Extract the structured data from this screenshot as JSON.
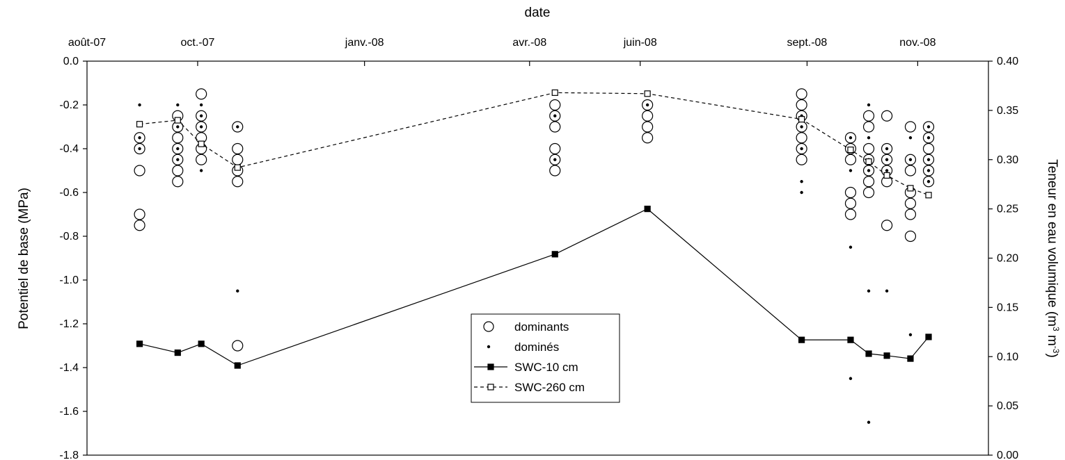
{
  "chart_data": {
    "type": "scatter",
    "title": "",
    "xlabel": "date",
    "ylabel_left": "Potentiel de base (MPa)",
    "ylabel_right_base": "Teneur en eau volumique (m",
    "ylabel_right_sup1": "3",
    "ylabel_right_mid": " m",
    "ylabel_right_sup2": "-3",
    "ylabel_right_end": ")",
    "x_ticks": [
      {
        "date": "2007-08-01",
        "label": "août-07"
      },
      {
        "date": "2007-10-01",
        "label": "oct.-07"
      },
      {
        "date": "2008-01-01",
        "label": "janv.-08"
      },
      {
        "date": "2008-04-01",
        "label": "avr.-08"
      },
      {
        "date": "2008-06-01",
        "label": "juin-08"
      },
      {
        "date": "2008-09-01",
        "label": "sept.-08"
      },
      {
        "date": "2008-11-01",
        "label": "nov.-08"
      }
    ],
    "xlim": [
      "2007-08-01",
      "2008-12-10"
    ],
    "ylim_left": [
      -1.8,
      0.0
    ],
    "ylim_right": [
      0.0,
      0.4
    ],
    "y_ticks_left": [
      "0.0",
      "-0.2",
      "-0.4",
      "-0.6",
      "-0.8",
      "-1.0",
      "-1.2",
      "-1.4",
      "-1.6",
      "-1.8"
    ],
    "y_ticks_right": [
      "0.40",
      "0.35",
      "0.30",
      "0.25",
      "0.20",
      "0.15",
      "0.10",
      "0.05",
      "0.00"
    ],
    "grid": false,
    "legend_position": "center",
    "series": [
      {
        "name": "dominants",
        "marker": "open-circle",
        "axis": "left",
        "points": [
          {
            "date": "2007-08-30",
            "values": [
              -0.35,
              -0.4,
              -0.5,
              -0.7,
              -0.75
            ]
          },
          {
            "date": "2007-09-20",
            "values": [
              -0.25,
              -0.3,
              -0.35,
              -0.4,
              -0.45,
              -0.5,
              -0.55
            ]
          },
          {
            "date": "2007-10-03",
            "values": [
              -0.15,
              -0.25,
              -0.3,
              -0.35,
              -0.4,
              -0.45
            ]
          },
          {
            "date": "2007-10-23",
            "values": [
              -0.3,
              -0.4,
              -0.45,
              -0.5,
              -0.55,
              -1.3
            ]
          },
          {
            "date": "2008-04-15",
            "values": [
              -0.2,
              -0.25,
              -0.3,
              -0.4,
              -0.45,
              -0.5
            ]
          },
          {
            "date": "2008-06-05",
            "values": [
              -0.2,
              -0.25,
              -0.3,
              -0.35
            ]
          },
          {
            "date": "2008-08-29",
            "values": [
              -0.15,
              -0.2,
              -0.25,
              -0.3,
              -0.35,
              -0.4,
              -0.45
            ]
          },
          {
            "date": "2008-09-25",
            "values": [
              -0.35,
              -0.4,
              -0.45,
              -0.6,
              -0.65,
              -0.7
            ]
          },
          {
            "date": "2008-10-05",
            "values": [
              -0.25,
              -0.3,
              -0.4,
              -0.45,
              -0.5,
              -0.55,
              -0.6
            ]
          },
          {
            "date": "2008-10-15",
            "values": [
              -0.25,
              -0.4,
              -0.45,
              -0.5,
              -0.55,
              -0.75
            ]
          },
          {
            "date": "2008-10-28",
            "values": [
              -0.3,
              -0.45,
              -0.5,
              -0.6,
              -0.65,
              -0.7,
              -0.8
            ]
          },
          {
            "date": "2008-11-07",
            "values": [
              -0.3,
              -0.35,
              -0.4,
              -0.45,
              -0.5,
              -0.55
            ]
          }
        ]
      },
      {
        "name": "dominés",
        "marker": "dot",
        "axis": "left",
        "points": [
          {
            "date": "2007-08-30",
            "values": [
              -0.2,
              -0.35,
              -0.4
            ]
          },
          {
            "date": "2007-09-20",
            "values": [
              -0.2,
              -0.3,
              -0.4,
              -0.45
            ]
          },
          {
            "date": "2007-10-03",
            "values": [
              -0.2,
              -0.25,
              -0.3,
              -0.5
            ]
          },
          {
            "date": "2007-10-23",
            "values": [
              -0.3,
              -1.05
            ]
          },
          {
            "date": "2008-04-15",
            "values": [
              -0.25,
              -0.45
            ]
          },
          {
            "date": "2008-06-05",
            "values": [
              -0.2
            ]
          },
          {
            "date": "2008-08-29",
            "values": [
              -0.25,
              -0.3,
              -0.4,
              -0.55,
              -0.6
            ]
          },
          {
            "date": "2008-09-25",
            "values": [
              -0.35,
              -0.5,
              -0.85,
              -1.45
            ]
          },
          {
            "date": "2008-10-05",
            "values": [
              -0.2,
              -0.35,
              -0.45,
              -0.5,
              -1.05,
              -1.65
            ]
          },
          {
            "date": "2008-10-15",
            "values": [
              -0.4,
              -0.45,
              -0.5,
              -1.05
            ]
          },
          {
            "date": "2008-10-28",
            "values": [
              -0.35,
              -0.45,
              -1.25
            ]
          },
          {
            "date": "2008-11-07",
            "values": [
              -0.3,
              -0.35,
              -0.45,
              -0.5,
              -0.55
            ]
          }
        ]
      },
      {
        "name": "SWC-10 cm",
        "marker": "filled-square",
        "line": "solid",
        "axis": "right",
        "x": [
          "2007-08-30",
          "2007-09-20",
          "2007-10-03",
          "2007-10-23",
          "2008-04-15",
          "2008-06-05",
          "2008-08-29",
          "2008-09-25",
          "2008-10-05",
          "2008-10-15",
          "2008-10-28",
          "2008-11-07"
        ],
        "y": [
          0.113,
          0.104,
          0.113,
          0.091,
          0.204,
          0.25,
          0.117,
          0.117,
          0.103,
          0.101,
          0.098,
          0.12
        ]
      },
      {
        "name": "SWC-260 cm",
        "marker": "open-square",
        "line": "dashed",
        "axis": "right",
        "x": [
          "2007-08-30",
          "2007-09-20",
          "2007-10-03",
          "2007-10-23",
          "2008-04-15",
          "2008-06-05",
          "2008-08-29",
          "2008-09-25",
          "2008-10-05",
          "2008-10-15",
          "2008-10-28",
          "2008-11-07"
        ],
        "y": [
          0.336,
          0.34,
          0.316,
          0.292,
          0.368,
          0.367,
          0.341,
          0.31,
          0.298,
          0.284,
          0.271,
          0.264
        ]
      }
    ]
  }
}
